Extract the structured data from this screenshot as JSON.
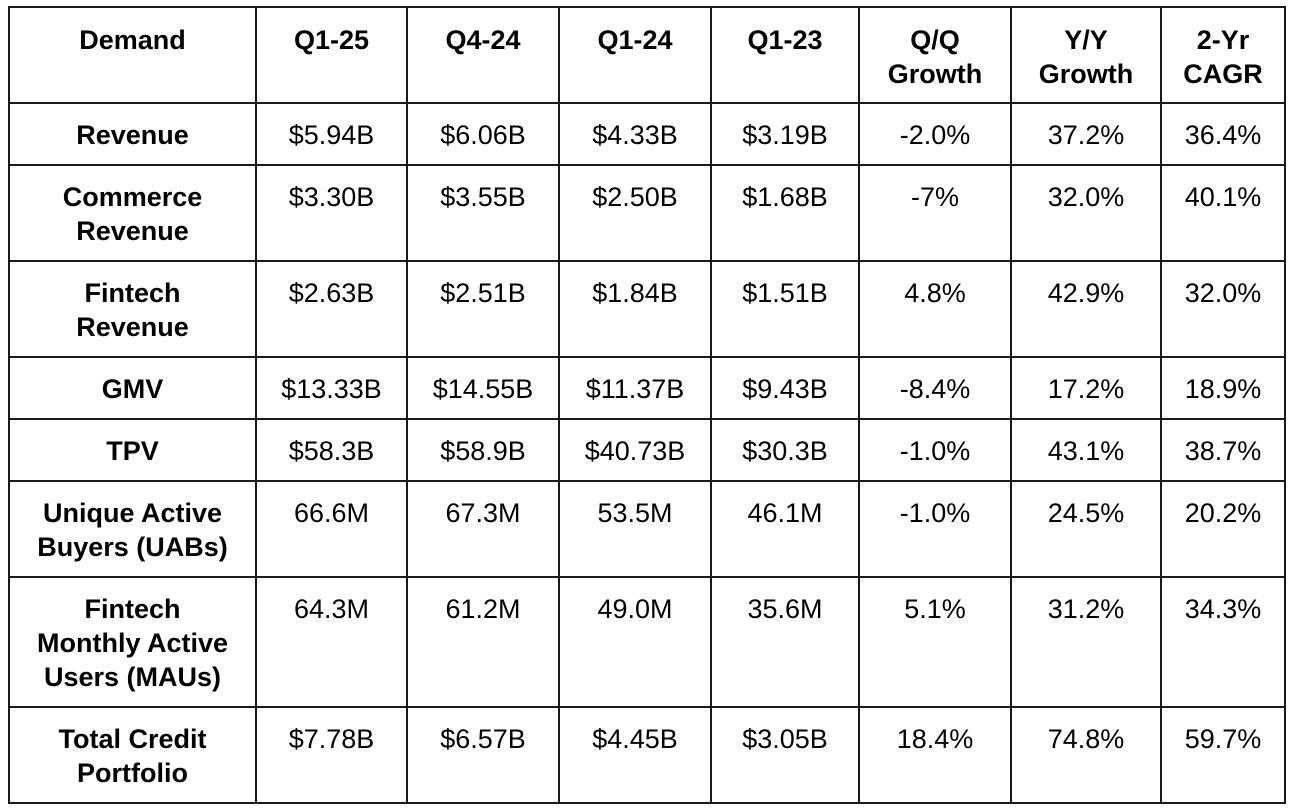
{
  "table": {
    "headers": [
      "Demand",
      "Q1-25",
      "Q4-24",
      "Q1-24",
      "Q1-23",
      "Q/Q\nGrowth",
      "Y/Y\nGrowth",
      "2-Yr\nCAGR"
    ],
    "rows": [
      {
        "metric": "Revenue",
        "values": [
          "$5.94B",
          "$6.06B",
          "$4.33B",
          "$3.19B",
          "-2.0%",
          "37.2%",
          "36.4%"
        ]
      },
      {
        "metric": "Commerce\nRevenue",
        "values": [
          "$3.30B",
          "$3.55B",
          "$2.50B",
          "$1.68B",
          "-7%",
          "32.0%",
          "40.1%"
        ]
      },
      {
        "metric": "Fintech\nRevenue",
        "values": [
          "$2.63B",
          "$2.51B",
          "$1.84B",
          "$1.51B",
          "4.8%",
          "42.9%",
          "32.0%"
        ]
      },
      {
        "metric": "GMV",
        "values": [
          "$13.33B",
          "$14.55B",
          "$11.37B",
          "$9.43B",
          "-8.4%",
          "17.2%",
          "18.9%"
        ]
      },
      {
        "metric": "TPV",
        "values": [
          "$58.3B",
          "$58.9B",
          "$40.73B",
          "$30.3B",
          "-1.0%",
          "43.1%",
          "38.7%"
        ]
      },
      {
        "metric": "Unique Active\nBuyers (UABs)",
        "values": [
          "66.6M",
          "67.3M",
          "53.5M",
          "46.1M",
          "-1.0%",
          "24.5%",
          "20.2%"
        ]
      },
      {
        "metric": "Fintech\nMonthly Active\nUsers (MAUs)",
        "values": [
          "64.3M",
          "61.2M",
          "49.0M",
          "35.6M",
          "5.1%",
          "31.2%",
          "34.3%"
        ]
      },
      {
        "metric": "Total Credit\nPortfolio",
        "values": [
          "$7.78B",
          "$6.57B",
          "$4.45B",
          "$3.05B",
          "18.4%",
          "74.8%",
          "59.7%"
        ]
      }
    ]
  }
}
